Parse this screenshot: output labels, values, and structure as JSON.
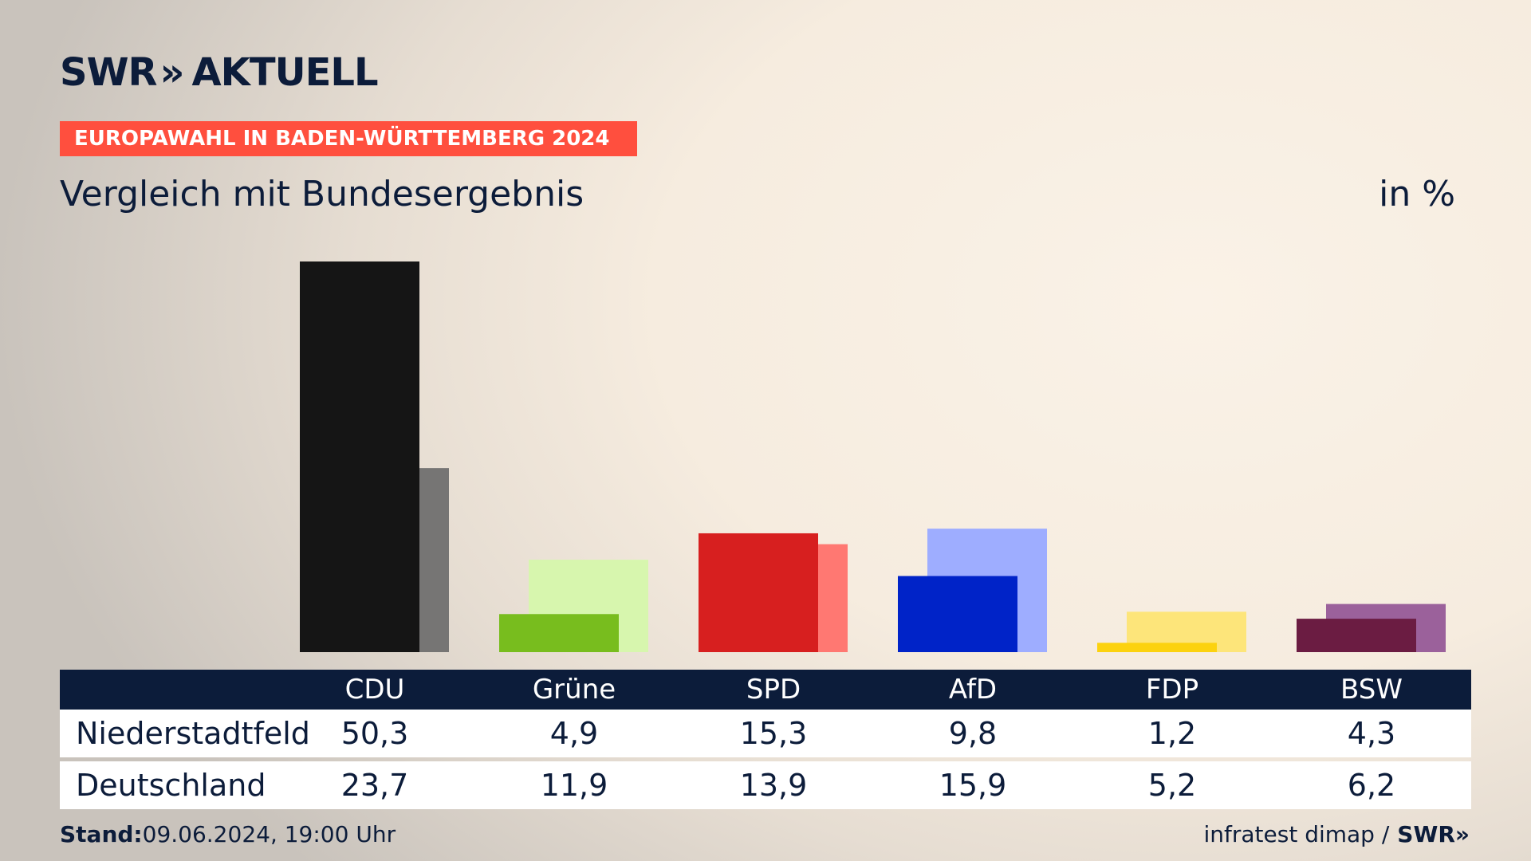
{
  "header": {
    "logo": "SWR AKTUELL",
    "logo_brand": "SWR",
    "logo_chevrons": "»",
    "logo_word": "AKTUELL",
    "banner": "EUROPAWAHL IN BADEN-WÜRTTEMBERG 2024",
    "subtitle": "Vergleich mit Bundesergebnis",
    "unit": "in %"
  },
  "colors": {
    "banner": "#ff4f3e",
    "navy": "#0c1c3a"
  },
  "chart_data": {
    "type": "bar",
    "title": "Vergleich mit Bundesergebnis",
    "ylabel": "in %",
    "categories": [
      "CDU",
      "Grüne",
      "SPD",
      "AfD",
      "FDP",
      "BSW"
    ],
    "series": [
      {
        "name": "Niederstadtfeld",
        "values": [
          50.3,
          4.9,
          15.3,
          9.8,
          1.2,
          4.3
        ],
        "display": [
          "50,3",
          "4,9",
          "15,3",
          "9,8",
          "1,2",
          "4,3"
        ],
        "colors": [
          "#151515",
          "#78bd1e",
          "#d71f1f",
          "#0023c8",
          "#fcd20f",
          "#6b1c42"
        ]
      },
      {
        "name": "Deutschland",
        "values": [
          23.7,
          11.9,
          13.9,
          15.9,
          5.2,
          6.2
        ],
        "display": [
          "23,7",
          "11,9",
          "13,9",
          "15,9",
          "5,2",
          "6,2"
        ],
        "colors": [
          "#767574",
          "#d7f6ae",
          "#ff7872",
          "#9eadff",
          "#fde57a",
          "#9b619b"
        ]
      }
    ],
    "ylim": [
      0,
      50.3
    ]
  },
  "footer": {
    "stand_label": "Stand:",
    "stand_value": "09.06.2024, 19:00 Uhr",
    "source": "infratest dimap /",
    "brand": "SWR»"
  }
}
